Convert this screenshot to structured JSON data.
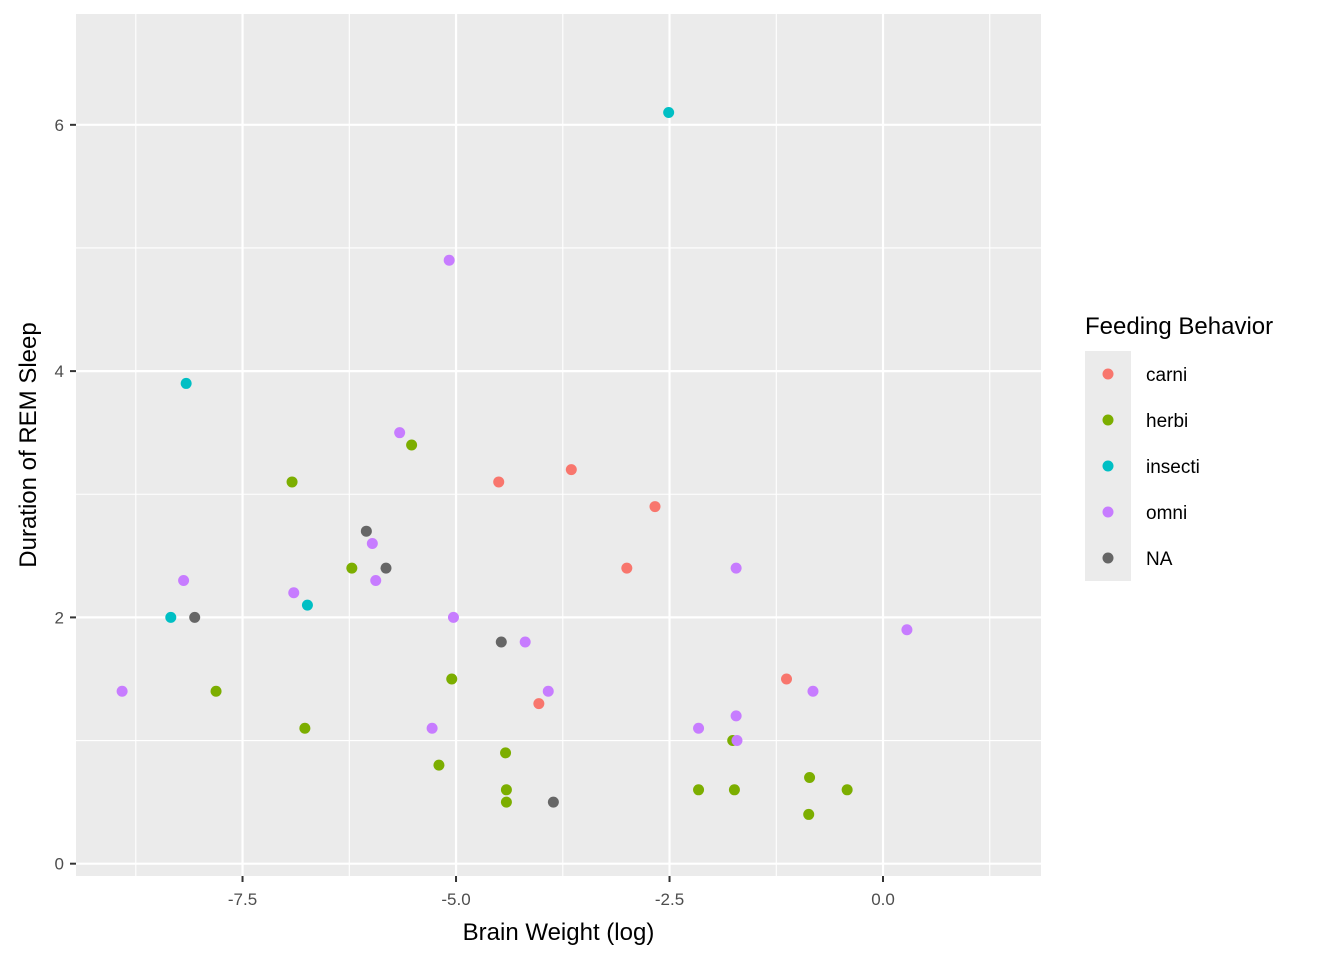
{
  "chart_data": {
    "type": "scatter",
    "xlabel": "Brain Weight (log)",
    "ylabel": "Duration of REM Sleep",
    "xlim": [
      -9.45,
      1.85
    ],
    "ylim": [
      -0.1,
      6.9
    ],
    "x_ticks": [
      -7.5,
      -5.0,
      -2.5,
      0.0
    ],
    "x_tick_labels": [
      "-7.5",
      "-5.0",
      "-2.5",
      "0.0"
    ],
    "y_ticks": [
      0,
      2,
      4,
      6
    ],
    "y_tick_labels": [
      "0",
      "2",
      "4",
      "6"
    ],
    "grid": true,
    "legend": {
      "title": "Feeding Behavior",
      "placement": "right",
      "entries": [
        {
          "label": "carni",
          "color": "#F8766D"
        },
        {
          "label": "herbi",
          "color": "#7CAE00"
        },
        {
          "label": "insecti",
          "color": "#00BFC4"
        },
        {
          "label": "omni",
          "color": "#C77CFF"
        },
        {
          "label": "NA",
          "color": "#666666"
        }
      ]
    },
    "series": [
      {
        "name": "carni",
        "color": "#F8766D",
        "points": [
          {
            "x": -4.5,
            "y": 3.1
          },
          {
            "x": -3.65,
            "y": 3.2
          },
          {
            "x": -2.67,
            "y": 2.9
          },
          {
            "x": -3.0,
            "y": 2.4
          },
          {
            "x": -4.03,
            "y": 1.3
          },
          {
            "x": -1.13,
            "y": 1.5
          }
        ]
      },
      {
        "name": "herbi",
        "color": "#7CAE00",
        "points": [
          {
            "x": -6.92,
            "y": 3.1
          },
          {
            "x": -5.52,
            "y": 3.4
          },
          {
            "x": -6.22,
            "y": 2.4
          },
          {
            "x": -7.81,
            "y": 1.4
          },
          {
            "x": -6.77,
            "y": 1.1
          },
          {
            "x": -5.05,
            "y": 1.5
          },
          {
            "x": -5.2,
            "y": 0.8
          },
          {
            "x": -4.42,
            "y": 0.9
          },
          {
            "x": -4.41,
            "y": 0.6
          },
          {
            "x": -4.41,
            "y": 0.5
          },
          {
            "x": -2.16,
            "y": 0.6
          },
          {
            "x": -1.76,
            "y": 1.0
          },
          {
            "x": -1.74,
            "y": 0.6
          },
          {
            "x": -0.86,
            "y": 0.7
          },
          {
            "x": -0.87,
            "y": 0.4
          },
          {
            "x": -0.42,
            "y": 0.6
          }
        ]
      },
      {
        "name": "insecti",
        "color": "#00BFC4",
        "points": [
          {
            "x": -2.51,
            "y": 6.1
          },
          {
            "x": -8.16,
            "y": 3.9
          },
          {
            "x": -8.34,
            "y": 2.0
          },
          {
            "x": -6.74,
            "y": 2.1
          }
        ]
      },
      {
        "name": "omni",
        "color": "#C77CFF",
        "points": [
          {
            "x": -5.08,
            "y": 4.9
          },
          {
            "x": -5.66,
            "y": 3.5
          },
          {
            "x": -5.98,
            "y": 2.6
          },
          {
            "x": -5.94,
            "y": 2.3
          },
          {
            "x": -8.19,
            "y": 2.3
          },
          {
            "x": -6.9,
            "y": 2.2
          },
          {
            "x": -5.03,
            "y": 2.0
          },
          {
            "x": -4.19,
            "y": 1.8
          },
          {
            "x": -8.91,
            "y": 1.4
          },
          {
            "x": -3.92,
            "y": 1.4
          },
          {
            "x": -5.28,
            "y": 1.1
          },
          {
            "x": -1.72,
            "y": 2.4
          },
          {
            "x": 0.28,
            "y": 1.9
          },
          {
            "x": -0.82,
            "y": 1.4
          },
          {
            "x": -1.72,
            "y": 1.2
          },
          {
            "x": -2.16,
            "y": 1.1
          },
          {
            "x": -1.71,
            "y": 1.0
          }
        ]
      },
      {
        "name": "NA",
        "color": "#666666",
        "points": [
          {
            "x": -6.05,
            "y": 2.7
          },
          {
            "x": -5.82,
            "y": 2.4
          },
          {
            "x": -8.06,
            "y": 2.0
          },
          {
            "x": -4.47,
            "y": 1.8
          },
          {
            "x": -3.86,
            "y": 0.5
          }
        ]
      }
    ]
  }
}
